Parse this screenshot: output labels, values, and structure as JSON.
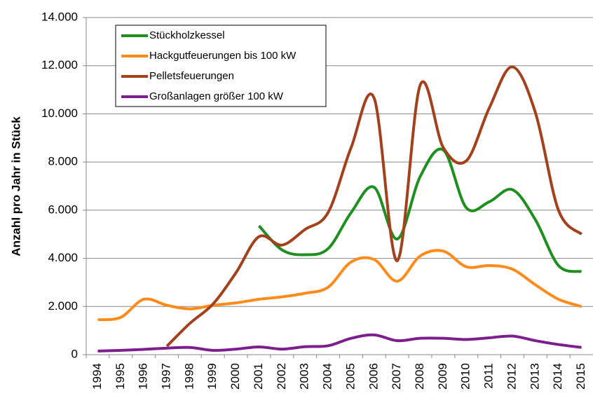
{
  "chart_data": {
    "type": "line",
    "ylabel": "Anzahl pro Jahr in Stück",
    "categories": [
      "1994",
      "1995",
      "1996",
      "1997",
      "1998",
      "1999",
      "2000",
      "2001",
      "2002",
      "2003",
      "2004",
      "2005",
      "2006",
      "2007",
      "2008",
      "2009",
      "2010",
      "2011",
      "2012",
      "2013",
      "2014",
      "2015"
    ],
    "series": [
      {
        "name": "Stückholzkessel",
        "color": "#1f8f1f",
        "values": [
          null,
          null,
          null,
          null,
          null,
          null,
          null,
          5350,
          4350,
          4150,
          4400,
          5900,
          6950,
          4800,
          7400,
          8500,
          6100,
          6350,
          6850,
          5600,
          3700,
          3450
        ]
      },
      {
        "name": "Hackgutfeuerungen bis 100 kW",
        "color": "#ff8c1a",
        "values": [
          1450,
          1550,
          2300,
          2050,
          1900,
          2050,
          2150,
          2300,
          2400,
          2550,
          2800,
          3850,
          3950,
          3050,
          4100,
          4300,
          3650,
          3700,
          3550,
          2900,
          2300,
          2000
        ]
      },
      {
        "name": "Pelletsfeuerungen",
        "color": "#a3411c",
        "values": [
          null,
          null,
          null,
          350,
          1300,
          2100,
          3400,
          4900,
          4550,
          5200,
          5900,
          8600,
          10650,
          3900,
          11200,
          8600,
          8050,
          10250,
          11950,
          10050,
          6000,
          5000
        ]
      },
      {
        "name": "Großanlagen größer 100 kW",
        "color": "#7e1e8e",
        "values": [
          150,
          180,
          220,
          270,
          300,
          180,
          230,
          320,
          230,
          330,
          370,
          680,
          820,
          580,
          680,
          680,
          630,
          700,
          770,
          580,
          420,
          300
        ]
      }
    ],
    "ylim": [
      0,
      14000
    ],
    "yticks": [
      0,
      {
        "value": 2000,
        "label": "2.000"
      },
      {
        "value": 4000,
        "label": "4.000"
      },
      {
        "value": 6000,
        "label": "6.000"
      },
      {
        "value": 8000,
        "label": "8.000"
      },
      {
        "value": 10000,
        "label": "10.000"
      },
      {
        "value": 12000,
        "label": "12.000"
      },
      {
        "value": 14000,
        "label": "14.000"
      }
    ],
    "grid": true,
    "legend": "upper left"
  }
}
